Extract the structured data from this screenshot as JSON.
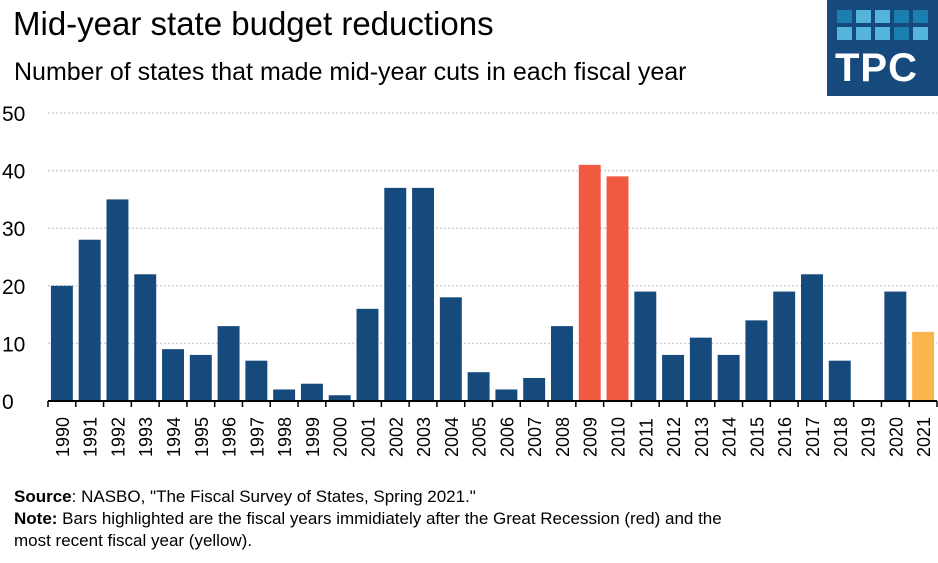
{
  "header": {
    "title": "Mid-year state budget reductions",
    "subtitle": "Number of states that made mid-year cuts in each fiscal year"
  },
  "logo": {
    "text": "TPC",
    "background": "#174a7c",
    "square_colors": [
      "#1a7fb0",
      "#54b4dc",
      "#54b4dc",
      "#1a7fb0",
      "#1a7fb0",
      "#54b4dc",
      "#54b4dc",
      "#54b4dc",
      "#1a7fb0",
      "#54b4dc"
    ]
  },
  "chart_data": {
    "type": "bar",
    "title": "Mid-year state budget reductions",
    "subtitle": "Number of states that made mid-year cuts in each fiscal year",
    "xlabel": "",
    "ylabel": "",
    "ylim": [
      0,
      50
    ],
    "yticks": [
      0,
      10,
      20,
      30,
      40,
      50
    ],
    "grid": true,
    "legend": "none",
    "categories": [
      "1990",
      "1991",
      "1992",
      "1993",
      "1994",
      "1995",
      "1996",
      "1997",
      "1998",
      "1999",
      "2000",
      "2001",
      "2002",
      "2003",
      "2004",
      "2005",
      "2006",
      "2007",
      "2008",
      "2009",
      "2010",
      "2011",
      "2012",
      "2013",
      "2014",
      "2015",
      "2016",
      "2017",
      "2018",
      "2019",
      "2020",
      "2021"
    ],
    "values": [
      20,
      28,
      35,
      22,
      9,
      8,
      13,
      7,
      2,
      3,
      1,
      16,
      37,
      37,
      18,
      5,
      2,
      4,
      13,
      41,
      39,
      19,
      8,
      11,
      8,
      14,
      19,
      22,
      7,
      0,
      19,
      12
    ],
    "highlight": {
      "2009": "red",
      "2010": "red",
      "2021": "yellow"
    },
    "colors": {
      "default": "#174a7c",
      "red": "#f05a40",
      "yellow": "#fbb54e",
      "grid": "#d0d0d0",
      "axis": "#000000"
    }
  },
  "footer": {
    "source_label": "Source",
    "source_text": ": NASBO, \"The Fiscal Survey of States, Spring 2021.\"",
    "note_label": "Note:",
    "note_text": " Bars highlighted are the fiscal years immidiately after the Great Recession (red) and the",
    "note_text_2": "most recent fiscal year (yellow)."
  }
}
